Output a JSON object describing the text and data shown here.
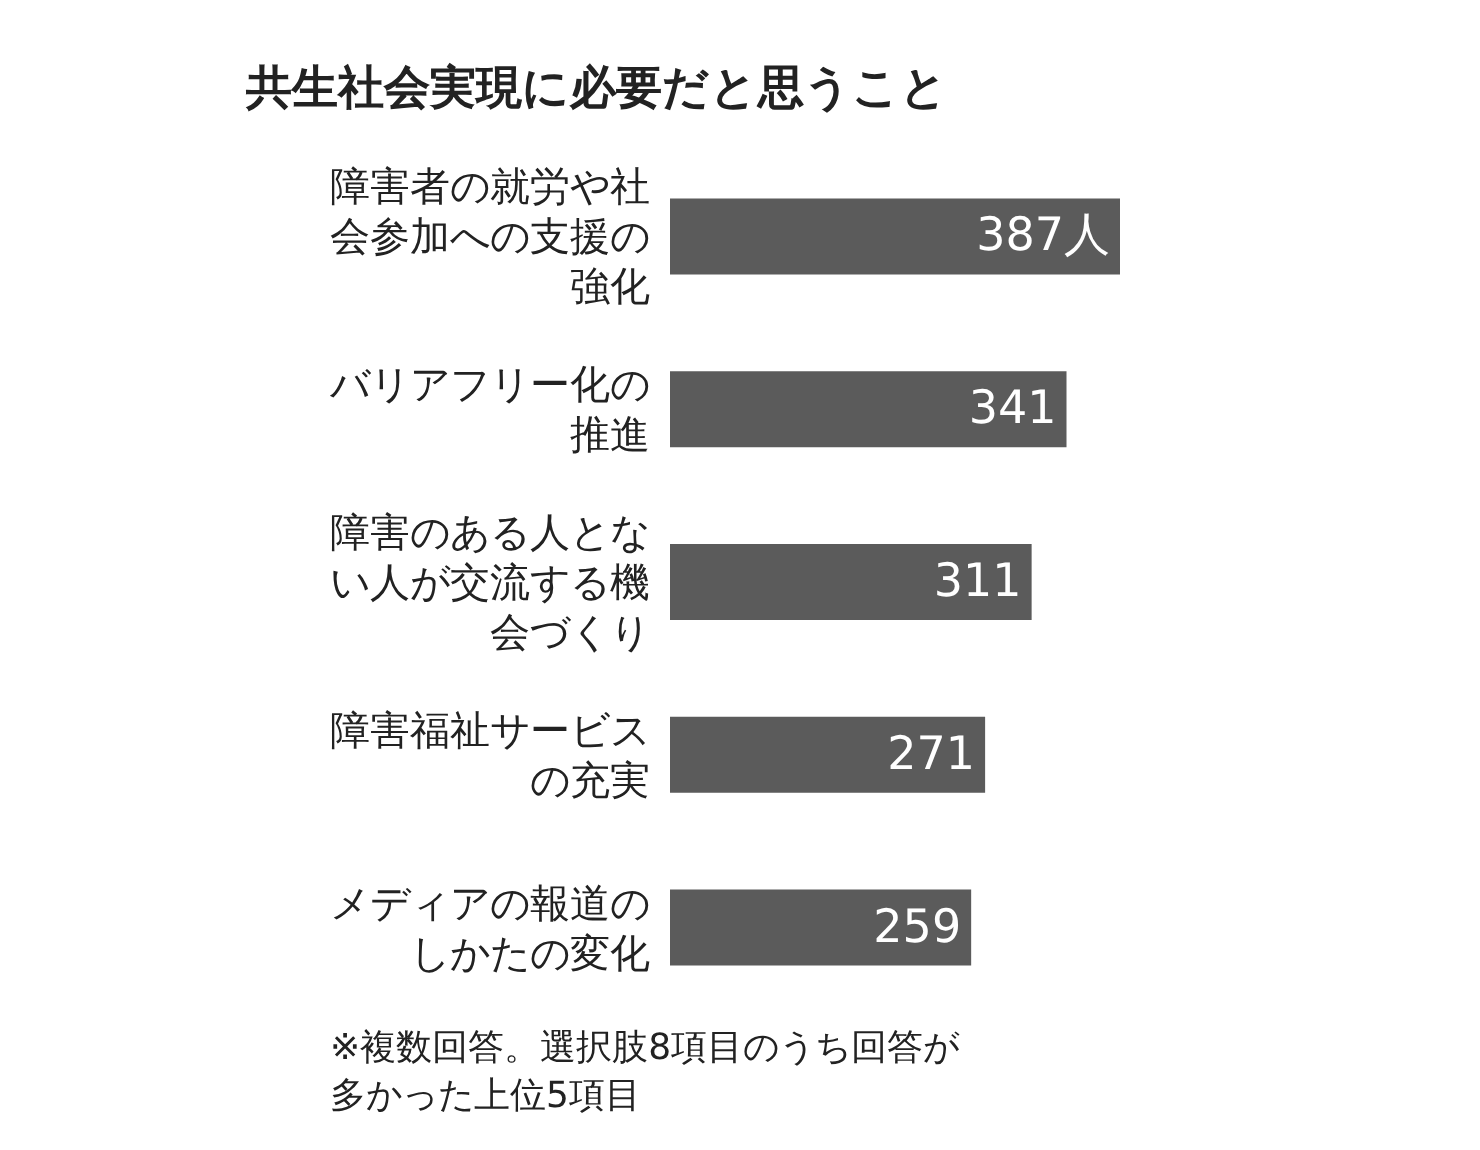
{
  "chart_data": {
    "type": "bar",
    "orientation": "horizontal",
    "title": "共生社会実現に必要だと思うこと",
    "categories": [
      "障害者の就労や社会参加への支援の強化",
      "バリアフリー化の推進",
      "障害のある人とない人が交流する機会づくり",
      "障害福祉サービスの充実",
      "メディアの報道のしかたの変化"
    ],
    "values": [
      387,
      341,
      311,
      271,
      259
    ],
    "value_labels": [
      "387人",
      "341",
      "311",
      "271",
      "259"
    ],
    "color": "#5b5b5b",
    "annotations": [
      "※複数回答。選択肢8項目のうち回答が多かった上位5項目"
    ]
  }
}
